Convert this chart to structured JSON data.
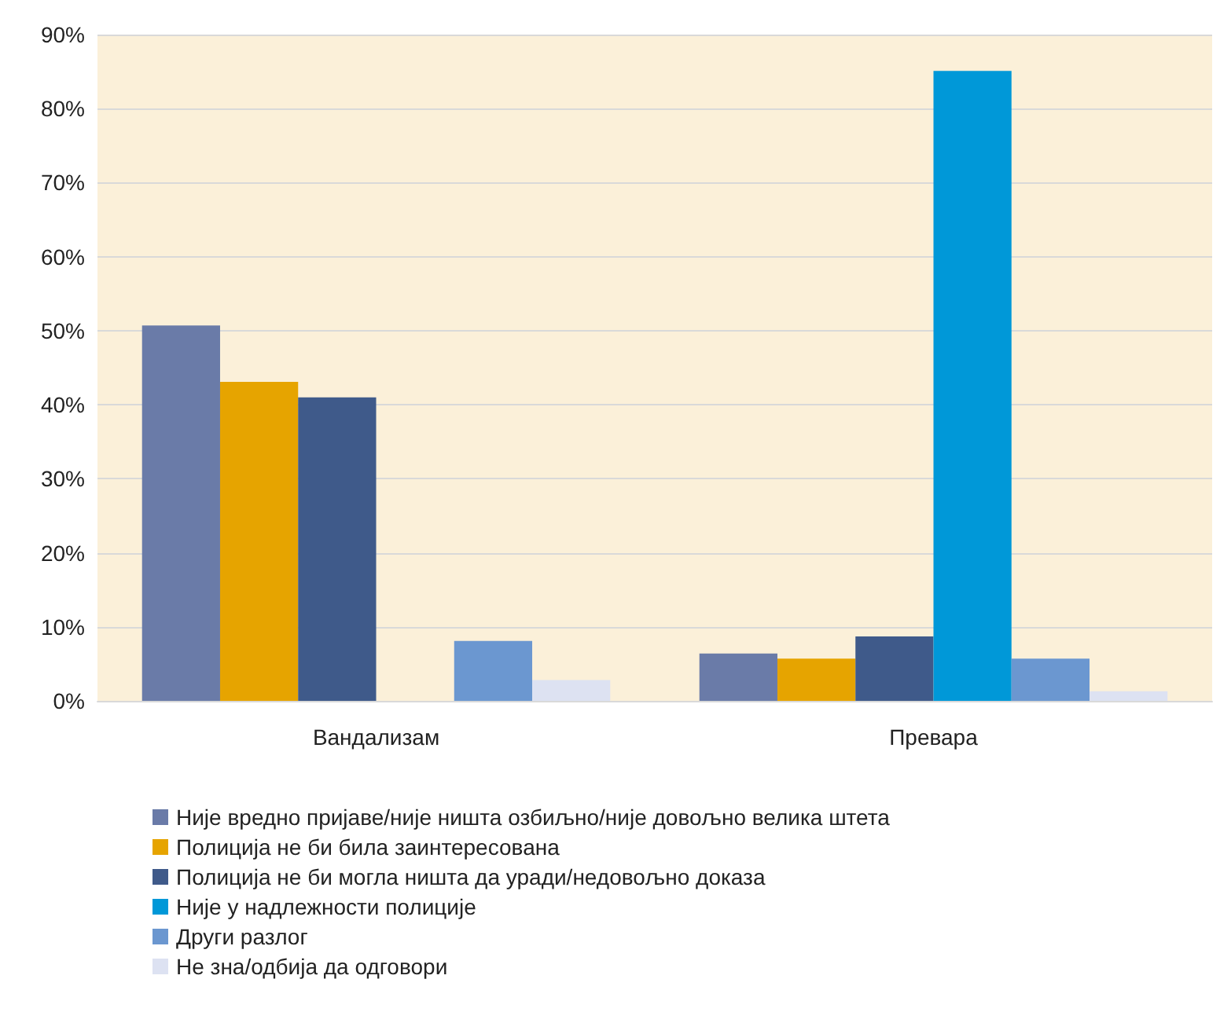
{
  "chart_data": {
    "type": "bar",
    "categories": [
      "Вандализам",
      "Превара"
    ],
    "series": [
      {
        "name": "Није вредно пријаве/није ништа озбиљно/није довољно велика штета",
        "color": "#6a7ba8",
        "values": [
          50.7,
          6.4
        ]
      },
      {
        "name": "Полиција не би била заинтересована",
        "color": "#e6a400",
        "values": [
          43.1,
          5.7
        ]
      },
      {
        "name": "Полиција не би могла ништа да уради/недовољно доказа",
        "color": "#3f5a8a",
        "values": [
          41.0,
          8.7
        ]
      },
      {
        "name": "Није у надлежности полиције",
        "color": "#0098d8",
        "values": [
          null,
          85.1
        ]
      },
      {
        "name": "Други разлог",
        "color": "#6b97d0",
        "values": [
          8.1,
          5.7
        ]
      },
      {
        "name": "Не зна/одбија да одговори",
        "color": "#dde2f2",
        "values": [
          2.8,
          1.3
        ]
      }
    ],
    "ylim": [
      0,
      90
    ],
    "yticks": [
      {
        "value": 0,
        "label": "0%"
      },
      {
        "value": 10,
        "label": "10%"
      },
      {
        "value": 20,
        "label": "20%"
      },
      {
        "value": 30,
        "label": "30%"
      },
      {
        "value": 40,
        "label": "40%"
      },
      {
        "value": 50,
        "label": "50%"
      },
      {
        "value": 60,
        "label": "60%"
      },
      {
        "value": 70,
        "label": "70%"
      },
      {
        "value": 80,
        "label": "80%"
      },
      {
        "value": 90,
        "label": "90%"
      }
    ],
    "grid": "y",
    "legend": "bottom"
  }
}
